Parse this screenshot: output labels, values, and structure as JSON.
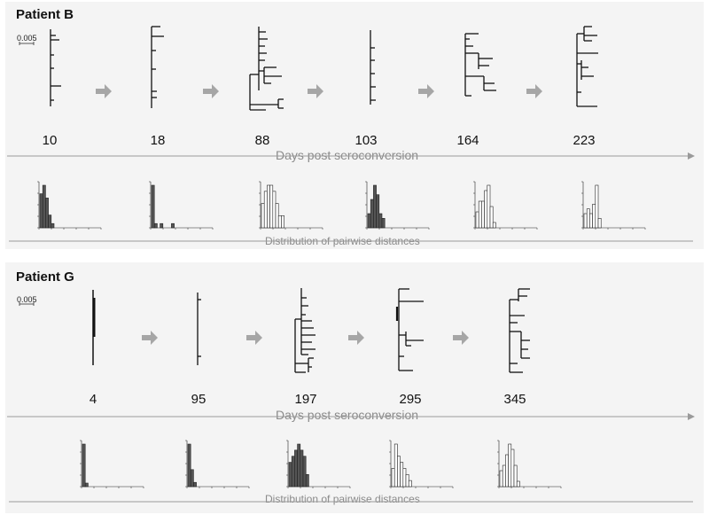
{
  "scale_bar": "0.005",
  "axis_label": "Days post seroconversion",
  "dist_label": "Distribution of pairwise distances",
  "colors": {
    "axis": "#9a9a9a",
    "arrow": "#a6a6a6",
    "tree": "#111111",
    "bar_dark": "#555555",
    "bar_light": "#ffffff",
    "panel": "#f4f4f4"
  },
  "patients": [
    {
      "name": "Patient B",
      "timepoints": [
        "10",
        "18",
        "88",
        "103",
        "164",
        "223"
      ],
      "histograms": [
        {
          "style": "dark",
          "values": [
            8,
            10,
            7,
            3,
            1
          ]
        },
        {
          "style": "dark",
          "values": [
            10,
            1,
            0,
            1,
            0,
            0,
            0,
            1
          ]
        },
        {
          "style": "light",
          "values": [
            4,
            6,
            7,
            7,
            6,
            4,
            2,
            2
          ]
        },
        {
          "style": "dark",
          "values": [
            3,
            6,
            9,
            7,
            3,
            2
          ]
        },
        {
          "style": "light",
          "values": [
            3,
            5,
            5,
            7,
            8,
            4,
            1
          ]
        },
        {
          "style": "light",
          "values": [
            3,
            4,
            3,
            5,
            9,
            2
          ]
        }
      ]
    },
    {
      "name": "Patient G",
      "timepoints": [
        "4",
        "95",
        "197",
        "295",
        "345"
      ],
      "histograms": [
        {
          "style": "dark",
          "values": [
            12,
            1
          ]
        },
        {
          "style": "dark",
          "values": [
            10,
            4,
            1
          ]
        },
        {
          "style": "dark",
          "values": [
            4,
            5,
            6,
            7,
            6,
            5,
            2
          ]
        },
        {
          "style": "light",
          "values": [
            3,
            7,
            5,
            4,
            3,
            2,
            1
          ]
        },
        {
          "style": "light",
          "values": [
            3,
            4,
            6,
            8,
            7,
            4,
            1
          ]
        }
      ]
    }
  ]
}
